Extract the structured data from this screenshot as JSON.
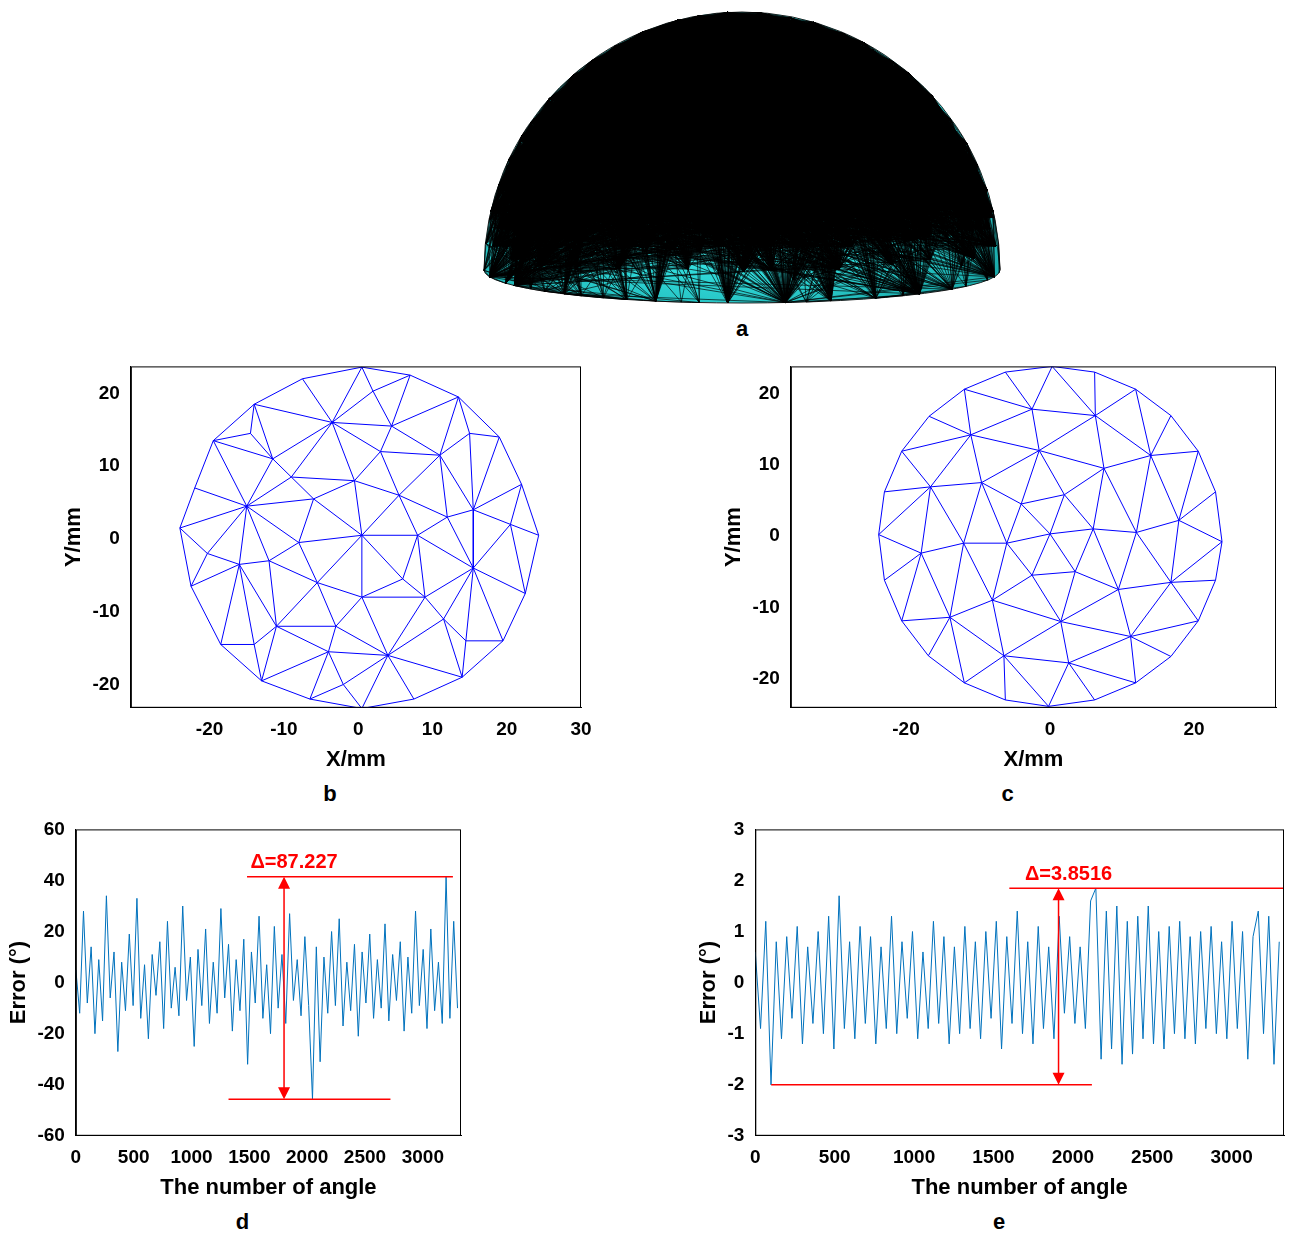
{
  "chart_data": [
    {
      "panel": "a",
      "type": "hemisphere_mesh",
      "color": "#33dede"
    },
    {
      "panel": "b",
      "type": "triplot",
      "x_label": "X/mm",
      "y_label": "Y/mm",
      "color": "#0000ff",
      "grid": false,
      "xlim": [
        -30.6,
        30
      ],
      "xticks": [
        -20,
        -10,
        0,
        10,
        20,
        30
      ],
      "ylim": [
        -23.2,
        23.7
      ],
      "yticks": [
        -20,
        -10,
        0,
        10,
        20
      ],
      "nodes": [
        [
          24.3,
          0.5
        ],
        [
          22.0,
          7.5
        ],
        [
          19.0,
          14.0
        ],
        [
          13.5,
          19.5
        ],
        [
          7.0,
          22.5
        ],
        [
          0.5,
          23.6
        ],
        [
          -7.5,
          22.0
        ],
        [
          -14.0,
          18.5
        ],
        [
          -19.5,
          13.5
        ],
        [
          -22.0,
          7.0
        ],
        [
          -24.0,
          1.5
        ],
        [
          -22.5,
          -6.5
        ],
        [
          -18.5,
          -14.5
        ],
        [
          -13.0,
          -19.5
        ],
        [
          -6.5,
          -22.0
        ],
        [
          0.5,
          -23.3
        ],
        [
          7.5,
          -22.0
        ],
        [
          14.0,
          -19.0
        ],
        [
          19.5,
          -14.0
        ],
        [
          22.5,
          -7.5
        ],
        [
          15.5,
          4.0
        ],
        [
          11.0,
          11.5
        ],
        [
          4.5,
          15.5
        ],
        [
          -3.5,
          16.0
        ],
        [
          -11.5,
          11.0
        ],
        [
          -15.0,
          4.5
        ],
        [
          -16.0,
          -3.5
        ],
        [
          -11.0,
          -12.0
        ],
        [
          -4.0,
          -15.5
        ],
        [
          4.0,
          -16.0
        ],
        [
          11.5,
          -11.0
        ],
        [
          15.5,
          -4.0
        ],
        [
          8.0,
          0.5
        ],
        [
          5.5,
          6.0
        ],
        [
          -0.5,
          8.0
        ],
        [
          -6.0,
          5.5
        ],
        [
          -8.0,
          -0.5
        ],
        [
          -5.5,
          -6.0
        ],
        [
          0.5,
          -8.0
        ],
        [
          6.0,
          -5.5
        ],
        [
          0.5,
          0.5
        ],
        [
          20.5,
          2.0
        ],
        [
          15.0,
          14.5
        ],
        [
          2.0,
          20.3
        ],
        [
          -14.5,
          14.5
        ],
        [
          -20.3,
          -2.0
        ],
        [
          -14.0,
          -14.5
        ],
        [
          -2.0,
          -20.0
        ],
        [
          14.5,
          -14.0
        ],
        [
          12.0,
          3.0
        ],
        [
          3.0,
          12.0
        ],
        [
          -9.0,
          8.5
        ],
        [
          -12.0,
          -3.0
        ],
        [
          -3.0,
          -12.0
        ],
        [
          9.0,
          -8.0
        ]
      ]
    },
    {
      "panel": "c",
      "type": "triplot",
      "x_label": "X/mm",
      "y_label": "Y/mm",
      "color": "#0000ff",
      "grid": false,
      "xlim": [
        -36,
        31.4
      ],
      "xticks": [
        -20,
        0,
        20
      ],
      "ylim": [
        -24.1,
        23.8
      ],
      "yticks": [
        -20,
        -10,
        0,
        10,
        20
      ],
      "nodes": [
        [
          23.9,
          -0.8
        ],
        [
          23.0,
          6.2
        ],
        [
          20.6,
          11.9
        ],
        [
          16.8,
          16.9
        ],
        [
          11.9,
          20.6
        ],
        [
          6.2,
          23.0
        ],
        [
          0.3,
          23.8
        ],
        [
          -6.2,
          23.0
        ],
        [
          -11.9,
          20.6
        ],
        [
          -16.8,
          16.8
        ],
        [
          -20.6,
          11.9
        ],
        [
          -23.0,
          6.2
        ],
        [
          -23.8,
          0.2
        ],
        [
          -23.0,
          -6.2
        ],
        [
          -20.6,
          -11.9
        ],
        [
          -16.9,
          -16.8
        ],
        [
          -11.9,
          -20.6
        ],
        [
          -6.2,
          -23.0
        ],
        [
          -0.2,
          -23.9
        ],
        [
          6.2,
          -23.0
        ],
        [
          11.9,
          -20.6
        ],
        [
          16.8,
          -16.9
        ],
        [
          20.6,
          -11.9
        ],
        [
          23.0,
          -6.2
        ],
        [
          17.9,
          2.2
        ],
        [
          14.0,
          11.3
        ],
        [
          6.3,
          16.9
        ],
        [
          -2.5,
          17.8
        ],
        [
          -11.0,
          14.2
        ],
        [
          -16.6,
          6.9
        ],
        [
          -17.9,
          -2.4
        ],
        [
          -13.9,
          -11.4
        ],
        [
          -6.4,
          -16.8
        ],
        [
          2.6,
          -17.8
        ],
        [
          11.2,
          -14.1
        ],
        [
          16.8,
          -6.5
        ],
        [
          12.0,
          0.5
        ],
        [
          7.5,
          9.5
        ],
        [
          -1.5,
          12.0
        ],
        [
          -9.5,
          7.5
        ],
        [
          -12.0,
          -1.0
        ],
        [
          -8.0,
          -9.0
        ],
        [
          1.5,
          -12.0
        ],
        [
          9.5,
          -7.5
        ],
        [
          6.0,
          1.0
        ],
        [
          2.0,
          5.8
        ],
        [
          -4.0,
          4.5
        ],
        [
          -6.0,
          -1.0
        ],
        [
          -2.5,
          -5.5
        ],
        [
          3.5,
          -5.0
        ],
        [
          0.0,
          0.3
        ]
      ]
    },
    {
      "panel": "d",
      "type": "line",
      "x_label": "The number of angle",
      "y_label": "Error (°)",
      "color": "#0072bd",
      "grid": false,
      "xlim": [
        0,
        3330
      ],
      "xticks": [
        0,
        500,
        1000,
        1500,
        2000,
        2500,
        3000
      ],
      "ylim": [
        -60,
        60
      ],
      "yticks": [
        -60,
        -40,
        -20,
        0,
        20,
        40,
        60
      ],
      "x": [
        0,
        33,
        66,
        99,
        132,
        165,
        198,
        231,
        264,
        297,
        330,
        363,
        396,
        429,
        462,
        495,
        528,
        561,
        594,
        627,
        660,
        693,
        726,
        759,
        792,
        825,
        858,
        891,
        924,
        957,
        990,
        1023,
        1056,
        1089,
        1122,
        1155,
        1188,
        1221,
        1254,
        1287,
        1320,
        1353,
        1386,
        1419,
        1452,
        1485,
        1518,
        1551,
        1584,
        1617,
        1650,
        1683,
        1716,
        1749,
        1782,
        1815,
        1848,
        1881,
        1914,
        1947,
        1980,
        2013,
        2046,
        2079,
        2112,
        2145,
        2178,
        2211,
        2244,
        2277,
        2310,
        2343,
        2376,
        2409,
        2442,
        2475,
        2508,
        2541,
        2574,
        2607,
        2640,
        2673,
        2706,
        2739,
        2772,
        2805,
        2838,
        2871,
        2904,
        2937,
        2970,
        3003,
        3036,
        3069,
        3102,
        3135,
        3168,
        3201,
        3234,
        3267,
        3300
      ],
      "values": [
        5,
        -12,
        28,
        -8,
        14,
        -20,
        9,
        -15,
        34,
        -6,
        12,
        -27,
        8,
        -11,
        19,
        -9,
        33,
        -14,
        7,
        -22,
        11,
        -5,
        16,
        -18,
        24,
        -10,
        6,
        -13,
        30,
        -7,
        10,
        -25,
        13,
        -9,
        21,
        -16,
        8,
        -12,
        29,
        -6,
        15,
        -19,
        9,
        -11,
        17,
        -32,
        12,
        -8,
        26,
        -14,
        7,
        -20,
        22,
        -10,
        11,
        -16,
        27,
        -7,
        9,
        -13,
        18,
        -9,
        -45.727,
        14,
        -31,
        10,
        -12,
        20,
        -9,
        25,
        -17,
        8,
        -11,
        15,
        -21,
        12,
        -8,
        19,
        -14,
        9,
        -10,
        23,
        -15,
        11,
        -7,
        16,
        -19,
        10,
        -12,
        28,
        -9,
        13,
        -18,
        21,
        -11,
        8,
        -16,
        41.5,
        -14,
        24,
        -10
      ],
      "annotations": [
        {
          "text": "Δ=87.227",
          "upper": 41.5,
          "lower": -45.727,
          "upper_x": [
            1480,
            3260
          ],
          "lower_x": [
            1320,
            2720
          ],
          "arrow_x": 1800,
          "color": "#ff0000"
        }
      ]
    },
    {
      "panel": "e",
      "type": "line",
      "x_label": "The number of angle",
      "y_label": "Error (°)",
      "color": "#0072bd",
      "grid": false,
      "xlim": [
        0,
        3330
      ],
      "xticks": [
        0,
        500,
        1000,
        1500,
        2000,
        2500,
        3000
      ],
      "ylim": [
        -3,
        3
      ],
      "yticks": [
        -3,
        -2,
        -1,
        0,
        1,
        2,
        3
      ],
      "x": [
        0,
        33,
        66,
        99,
        132,
        165,
        198,
        231,
        264,
        297,
        330,
        363,
        396,
        429,
        462,
        495,
        528,
        561,
        594,
        627,
        660,
        693,
        726,
        759,
        792,
        825,
        858,
        891,
        924,
        957,
        990,
        1023,
        1056,
        1089,
        1122,
        1155,
        1188,
        1221,
        1254,
        1287,
        1320,
        1353,
        1386,
        1419,
        1452,
        1485,
        1518,
        1551,
        1584,
        1617,
        1650,
        1683,
        1716,
        1749,
        1782,
        1815,
        1848,
        1881,
        1914,
        1947,
        1980,
        2013,
        2046,
        2079,
        2112,
        2145,
        2178,
        2211,
        2244,
        2277,
        2310,
        2343,
        2376,
        2409,
        2442,
        2475,
        2508,
        2541,
        2574,
        2607,
        2640,
        2673,
        2706,
        2739,
        2772,
        2805,
        2838,
        2871,
        2904,
        2937,
        2970,
        3003,
        3036,
        3069,
        3102,
        3135,
        3168,
        3201,
        3234,
        3267,
        3300
      ],
      "values": [
        0.6,
        -0.9,
        1.2,
        -2.0016,
        0.8,
        -1.1,
        0.9,
        -0.7,
        1.1,
        -1.2,
        0.7,
        -0.8,
        1.0,
        -1.0,
        1.3,
        -1.3,
        1.7,
        -0.9,
        0.8,
        -1.1,
        1.1,
        -0.8,
        0.9,
        -1.2,
        0.7,
        -0.9,
        1.3,
        -1.0,
        0.8,
        -0.7,
        1.0,
        -1.1,
        0.6,
        -0.9,
        1.2,
        -0.8,
        0.9,
        -1.2,
        0.7,
        -1.0,
        1.1,
        -0.9,
        0.8,
        -1.1,
        1.0,
        -0.7,
        1.2,
        -1.3,
        0.9,
        -0.8,
        1.4,
        -1.0,
        0.8,
        -1.2,
        1.1,
        -0.9,
        0.7,
        -1.1,
        1.3,
        -0.6,
        0.9,
        -0.8,
        0.7,
        -0.9,
        1.6,
        1.85,
        -1.5,
        1.4,
        -1.3,
        1.5,
        -1.6,
        1.2,
        -1.4,
        1.3,
        -1.1,
        1.5,
        -1.2,
        1.0,
        -1.3,
        1.1,
        -1.0,
        1.2,
        -1.1,
        0.9,
        -1.2,
        1.0,
        -0.9,
        1.1,
        -1.0,
        0.8,
        -1.1,
        1.2,
        -0.9,
        1.0,
        -1.5,
        0.9,
        1.4,
        -1.0,
        1.3,
        -1.6,
        0.8
      ],
      "annotations": [
        {
          "text": "Δ=3.8516",
          "upper": 1.85,
          "lower": -2.0016,
          "upper_x": [
            1600,
            3330
          ],
          "lower_x": [
            100,
            2120
          ],
          "arrow_x": 1910,
          "color": "#ff0000"
        }
      ]
    }
  ]
}
